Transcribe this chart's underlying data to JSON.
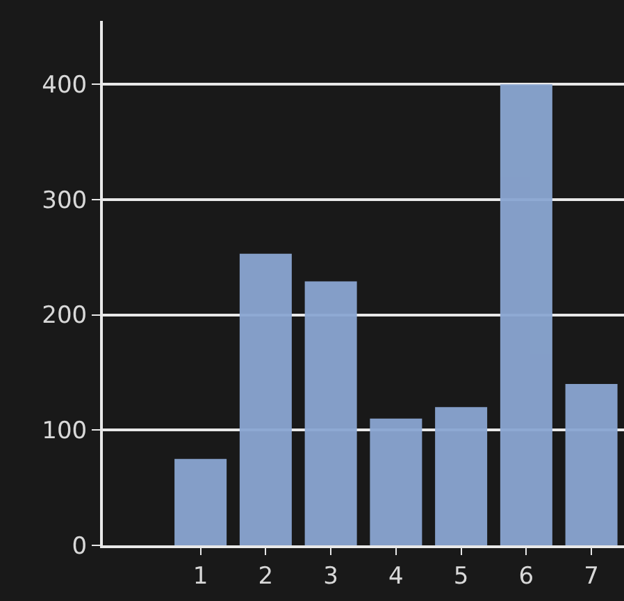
{
  "chart_data": {
    "type": "bar",
    "x": [
      1,
      2,
      3,
      4,
      5,
      6,
      7
    ],
    "values": [
      75,
      253,
      229,
      110,
      120,
      400,
      140
    ],
    "color": "#8aa6d2",
    "xlim": [
      -0.5,
      7.5
    ],
    "xticks": [
      1,
      2,
      3,
      4,
      5,
      6,
      7
    ],
    "ylim": [
      0,
      455
    ],
    "yticks": [
      0,
      100,
      200,
      300,
      400
    ],
    "grid": "y"
  }
}
